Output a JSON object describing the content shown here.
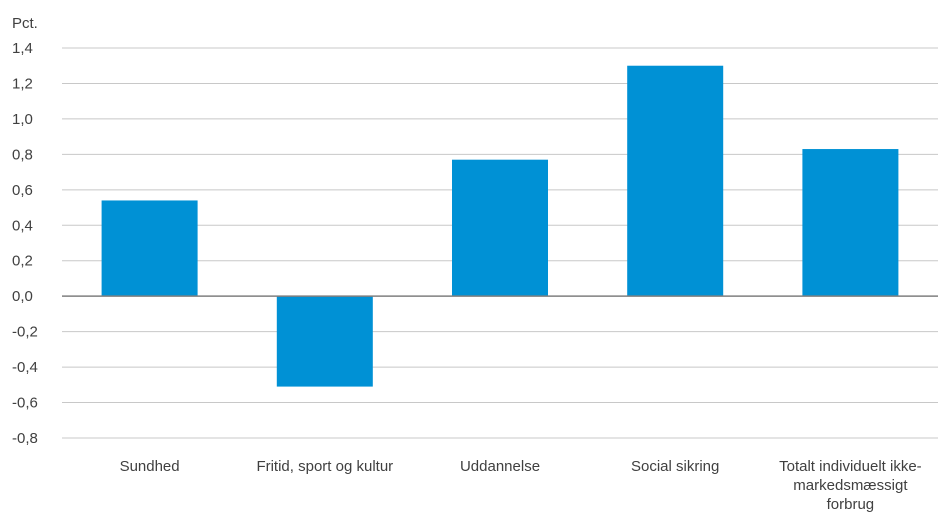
{
  "chart_data": {
    "type": "bar",
    "title": "",
    "xlabel": "",
    "ylabel": "Pct.",
    "categories": [
      [
        "Sundhed"
      ],
      [
        "Fritid, sport og kultur"
      ],
      [
        "Uddannelse"
      ],
      [
        "Social sikring"
      ],
      [
        "Totalt individuelt ikke-",
        "markedsmæssigt",
        "forbrug"
      ]
    ],
    "values": [
      0.54,
      -0.51,
      0.77,
      1.3,
      0.83
    ],
    "ylim": [
      -0.8,
      1.4
    ],
    "yticks": [
      "1,4",
      "1,2",
      "1,0",
      "0,8",
      "0,6",
      "0,4",
      "0,2",
      "0,0",
      "-0,2",
      "-0,4",
      "-0,6",
      "-0,8"
    ],
    "grid": true,
    "legend": "none",
    "colors": {
      "bar": "#0091d5",
      "grid": "#c8c8c8",
      "zero_line": "#7f7f7f",
      "text": "#404040"
    }
  }
}
